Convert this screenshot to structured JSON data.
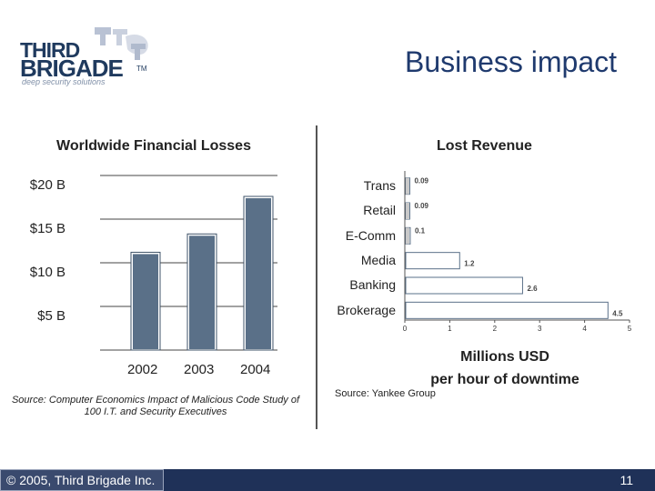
{
  "logo": {
    "line1": "THIRD",
    "line2": "BRIGADE",
    "tm": "TM",
    "tagline": "deep security solutions"
  },
  "slide": {
    "title": "Business impact",
    "page_number": "11",
    "copyright": "© 2005, Third Brigade Inc."
  },
  "colors": {
    "bar_fill": "#5a7088",
    "accent_blue": "#1f3a6e",
    "footer_bg": "#1f3158"
  },
  "chart_data": [
    {
      "type": "bar",
      "title": "Worldwide Financial Losses",
      "categories": [
        "2002",
        "2003",
        "2004"
      ],
      "values": [
        11.1,
        13.2,
        17.5
      ],
      "ylim": [
        0,
        20
      ],
      "yticks": [
        {
          "value": 20,
          "label": "$20 B"
        },
        {
          "value": 15,
          "label": "$15 B"
        },
        {
          "value": 10,
          "label": "$10 B"
        },
        {
          "value": 5,
          "label": "$5 B"
        }
      ],
      "source": "Source: Computer Economics Impact of Malicious Code Study of 100 I.T. and Security Executives"
    },
    {
      "type": "bar",
      "orientation": "horizontal",
      "title": "Lost Revenue",
      "categories": [
        "Trans",
        "Retail",
        "E-Comm",
        "Media",
        "Banking",
        "Brokerage"
      ],
      "values": [
        0.09,
        0.09,
        0.1,
        1.2,
        2.6,
        4.5
      ],
      "value_labels": [
        "0.09",
        "0.09",
        "0.1",
        "1.2",
        "2.6",
        "4.5"
      ],
      "xlim": [
        0,
        5
      ],
      "xticks": [
        "0",
        "1",
        "2",
        "3",
        "4",
        "5"
      ],
      "xlabel_line1": "Millions USD",
      "xlabel_line2": "per hour of downtime",
      "source": "Source: Yankee Group"
    }
  ]
}
